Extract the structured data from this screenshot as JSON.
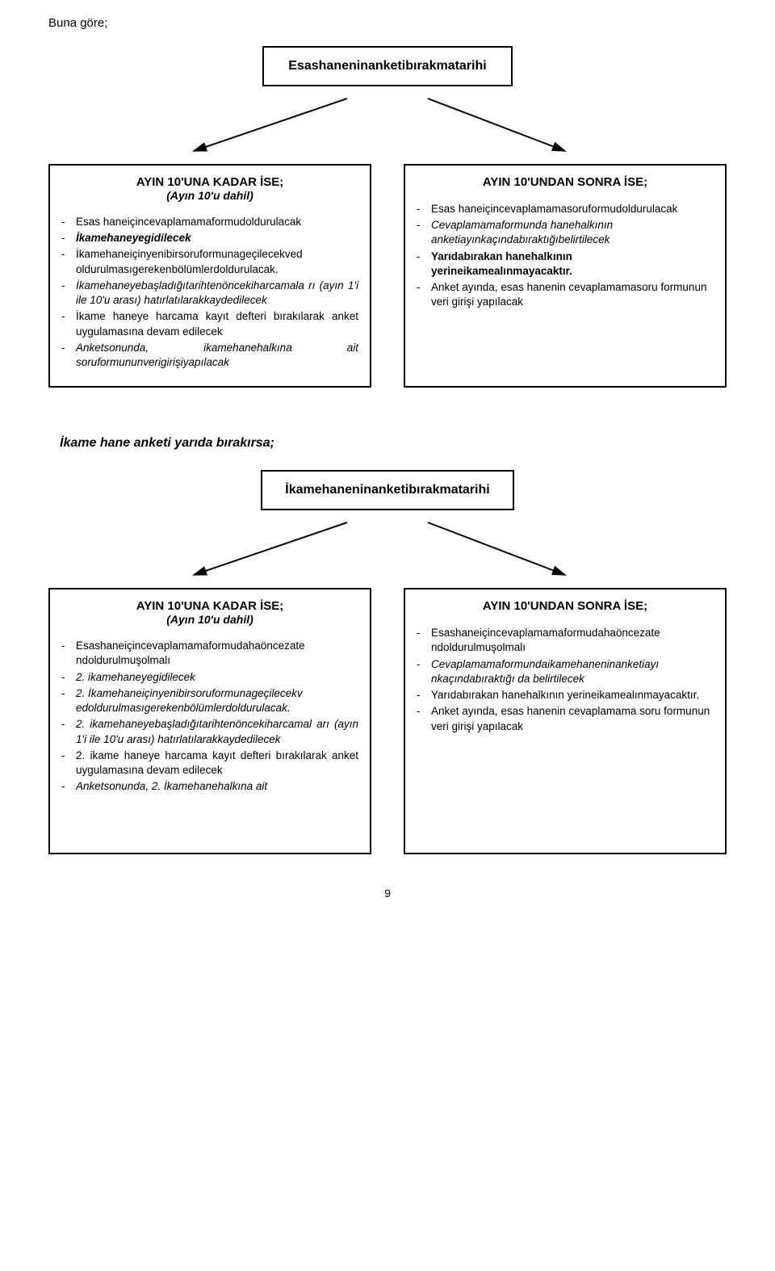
{
  "intro": "Buna göre;",
  "box1": "Esashaneninanketibırakmatarihi",
  "section1": {
    "left": {
      "header_line1": "AYIN 10'UNA KADAR İSE;",
      "header_line2": "(Ayın 10'u dahil)",
      "items": [
        {
          "parts": [
            {
              "t": "Esas haneiçincevaplamamaformudoldurulacak",
              "style": ""
            }
          ]
        },
        {
          "parts": [
            {
              "t": "İkamehaneyegidilecek",
              "style": "bi"
            }
          ]
        },
        {
          "parts": [
            {
              "t": "İkamehaneiçinyenibirsoruformunageçilecekved oldurulmasıgerekenbölümlerdoldurulacak.",
              "style": ""
            }
          ]
        },
        {
          "parts": [
            {
              "t": "İkamehaneyebaşladığıtarihtenöncekiharcamala rı (ayın 1'i ile 10'u arası) hatırlatılarakkaydedilecek",
              "style": "i"
            }
          ],
          "justify": true
        },
        {
          "parts": [
            {
              "t": "İkame haneye harcama kayıt defteri bırakılarak anket uygulamasına devam edilecek",
              "style": ""
            }
          ],
          "justify": true
        },
        {
          "parts": [
            {
              "t": "Anketsonunda, ",
              "style": "i"
            },
            {
              "t": "ikamehanehalkına ait soruformununverigirişiyapılacak",
              "style": "i"
            }
          ],
          "justify": true
        }
      ]
    },
    "right": {
      "header_line1": "AYIN 10'UNDAN SONRA İSE;",
      "items": [
        {
          "parts": [
            {
              "t": "Esas haneiçincevaplamamasoruformudoldurulacak",
              "style": ""
            }
          ]
        },
        {
          "parts": [
            {
              "t": "Cevaplamamaformunda hanehalkının anketiayınkaçındabıraktığıbelirtilecek",
              "style": "i"
            }
          ]
        },
        {
          "parts": [
            {
              "t": "Yarıdabırakan hanehalkının yerineikamealınmayacaktır.",
              "style": "b"
            }
          ]
        },
        {
          "parts": [
            {
              "t": "Anket ayında, ",
              "style": ""
            },
            {
              "t": "esas hanenin cevaplamamasoru formunun veri girişi yapılacak",
              "style": ""
            }
          ]
        }
      ]
    }
  },
  "section2_title": "İkame hane anketi yarıda bırakırsa;",
  "box2": "İkamehaneninanketibırakmatarihi",
  "section2": {
    "left": {
      "header_line1": "AYIN 10'UNA KADAR İSE;",
      "header_line2": "(Ayın 10'u dahil)",
      "items": [
        {
          "parts": [
            {
              "t": "Esashaneiçincevaplamamaformudahaöncezate ndoldurulmuşolmalı",
              "style": ""
            }
          ]
        },
        {
          "parts": [
            {
              "t": "2. ikamehaneyegidilecek",
              "style": "i"
            }
          ]
        },
        {
          "parts": [
            {
              "t": "2. İkamehaneiçinyenibirsoruformunageçilecekv edoldurulmasıgerekenbölümlerdoldurulacak.",
              "style": "i"
            }
          ]
        },
        {
          "parts": [
            {
              "t": "2. ikamehaneyebaşladığıtarihtenöncekiharcamal arı (ayın 1'i ile 10'u arası) hatırlatılarakkaydedilecek",
              "style": "i"
            }
          ],
          "justify": true
        },
        {
          "parts": [
            {
              "t": "2. ikame haneye harcama kayıt defteri bırakılarak anket uygulamasına devam edilecek",
              "style": ""
            }
          ],
          "justify": true
        },
        {
          "parts": [
            {
              "t": "Anketsonunda, 2. İkamehanehalkına ait",
              "style": "i"
            }
          ],
          "justify": true
        }
      ]
    },
    "right": {
      "header_line1": "AYIN 10'UNDAN SONRA İSE;",
      "items": [
        {
          "parts": [
            {
              "t": "Esashaneiçincevaplamamaformudahaöncezate ndoldurulmuşolmalı",
              "style": ""
            }
          ]
        },
        {
          "parts": [
            {
              "t": "Cevaplamamaformundaikamehaneninanketiayı nkaçındabıraktığı da belirtilecek",
              "style": "i"
            }
          ]
        },
        {
          "parts": [
            {
              "t": "Yarıdabırakan hanehalkının yerineikamealınmayacaktır.",
              "style": ""
            }
          ]
        },
        {
          "parts": [
            {
              "t": "Anket ayında, ",
              "style": ""
            },
            {
              "t": "esas hanenin cevaplamama soru formunun veri girişi yapılacak",
              "style": ""
            }
          ]
        }
      ]
    }
  },
  "page_number": "9",
  "arrow_svg": {
    "stroke": "#000000",
    "stroke_width": 2
  }
}
